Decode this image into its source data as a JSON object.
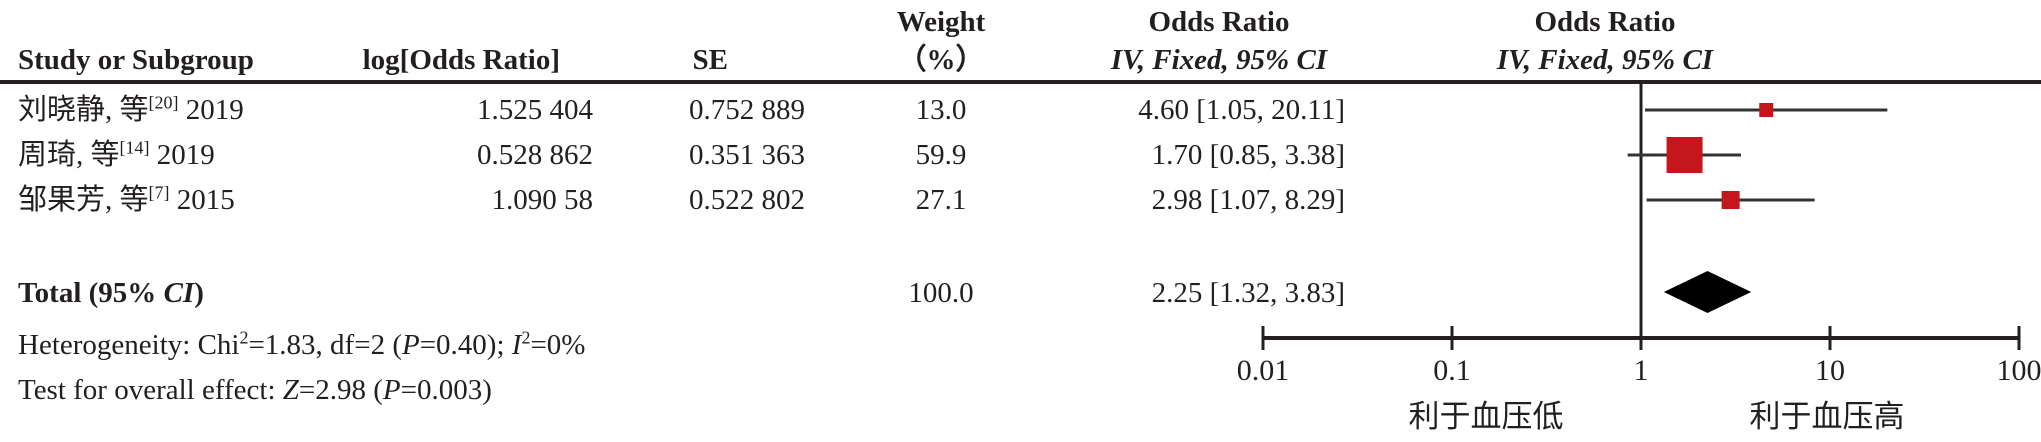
{
  "table": {
    "headers": {
      "study": "Study or Subgroup",
      "log_or": "log[Odds Ratio]",
      "se": "SE",
      "weight_line1": "Weight",
      "weight_line2": "（%）",
      "or_text_line1": "Odds Ratio",
      "or_text_line2": "IV, Fixed, 95% CI",
      "or_plot_line1": "Odds Ratio",
      "or_plot_line2": "IV, Fixed, 95% CI"
    },
    "rows": [
      {
        "study": "刘晓静, 等",
        "ref": "[20]",
        "year": "2019",
        "log_or": "1.525 404",
        "se": "0.752 889",
        "weight": "13.0",
        "or_ci": "4.60 [1.05, 20.11]"
      },
      {
        "study": "周琦, 等",
        "ref": "[14]",
        "year": "2019",
        "log_or": "0.528 862",
        "se": "0.351 363",
        "weight": "59.9",
        "or_ci": "1.70 [0.85, 3.38]"
      },
      {
        "study": "邹果芳, 等",
        "ref": "[7]",
        "year": "2015",
        "log_or": "1.090 58",
        "se": "0.522 802",
        "weight": "27.1",
        "or_ci": "2.98 [1.07, 8.29]"
      }
    ],
    "total": {
      "label_prefix": "Total (95% ",
      "label_italic": "CI",
      "label_suffix": ")",
      "weight": "100.0",
      "or_ci": "2.25 [1.32, 3.83]"
    },
    "stats": {
      "het_prefix": "Heterogeneity: Chi",
      "het_sup1": "2",
      "het_seg2": "=1.83, df=2 (",
      "het_p": "P",
      "het_seg3": "=0.40); ",
      "het_i": "I",
      "het_sup2": "2",
      "het_seg4": "=0%",
      "test_prefix": "Test for overall effect: ",
      "test_z": "Z",
      "test_seg2": "=2.98 (",
      "test_p": "P",
      "test_seg3": "=0.003)"
    }
  },
  "chart_data": {
    "type": "forest",
    "x_scale": "log10",
    "effect_measure": "Odds Ratio",
    "model": "IV, Fixed, 95% CI",
    "null_line": 1,
    "x_ticks": [
      0.01,
      0.1,
      1,
      10,
      100
    ],
    "x_tick_labels": [
      "0.01",
      "0.1",
      "1",
      "10",
      "100"
    ],
    "studies": [
      {
        "label": "刘晓静, 等[20] 2019",
        "log_or": 1.525404,
        "se": 0.752889,
        "weight_pct": 13.0,
        "or": 4.6,
        "ci_low": 1.05,
        "ci_high": 20.11
      },
      {
        "label": "周琦, 等[14] 2019",
        "log_or": 0.528862,
        "se": 0.351363,
        "weight_pct": 59.9,
        "or": 1.7,
        "ci_low": 0.85,
        "ci_high": 3.38
      },
      {
        "label": "邹果芳, 等[7] 2015",
        "log_or": 1.09058,
        "se": 0.522802,
        "weight_pct": 27.1,
        "or": 2.98,
        "ci_low": 1.07,
        "ci_high": 8.29
      }
    ],
    "total": {
      "label": "Total (95% CI)",
      "weight_pct": 100.0,
      "or": 2.25,
      "ci_low": 1.32,
      "ci_high": 3.83
    },
    "heterogeneity_text": "Heterogeneity: Chi2=1.83, df=2 (P=0.40); I2=0%",
    "overall_effect_text": "Test for overall effect: Z=2.98 (P=0.003)",
    "favors_left": "利于血压低",
    "favors_right": "利于血压高",
    "marker_color": "#c4161c",
    "diamond_color": "#000000",
    "line_color": "#333333",
    "axis_color": "#231f20"
  }
}
